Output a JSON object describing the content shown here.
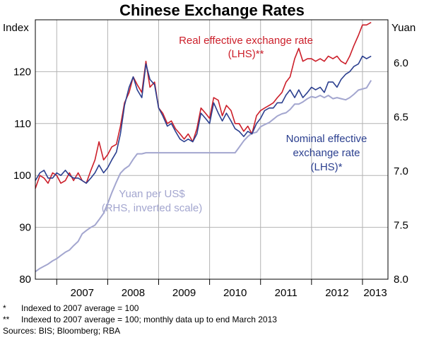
{
  "chart_data": {
    "type": "line",
    "title": "Chinese Exchange Rates",
    "left_axis": {
      "label": "Index",
      "range": [
        80,
        130
      ],
      "ticks": [
        "80",
        "90",
        "100",
        "110",
        "120"
      ]
    },
    "right_axis": {
      "label": "Yuan",
      "range": [
        8.0,
        5.6
      ],
      "inverted": true,
      "ticks": [
        "6.0",
        "6.5",
        "7.0",
        "7.5",
        "8.0"
      ]
    },
    "x_axis": {
      "range": [
        2006.58,
        2013.5
      ],
      "ticks": [
        "2007",
        "2008",
        "2009",
        "2010",
        "2011",
        "2012",
        "2013"
      ]
    },
    "grid": true,
    "series": [
      {
        "name": "Real effective exchange rate",
        "label_lines": [
          "Real effective exchange rate",
          "(LHS)**"
        ],
        "axis": "left",
        "color": "#cc1f2a",
        "x": [
          2006.58,
          2006.67,
          2006.75,
          2006.83,
          2006.92,
          2007.0,
          2007.08,
          2007.17,
          2007.25,
          2007.33,
          2007.42,
          2007.5,
          2007.58,
          2007.67,
          2007.75,
          2007.83,
          2007.92,
          2008.0,
          2008.08,
          2008.17,
          2008.25,
          2008.33,
          2008.42,
          2008.5,
          2008.58,
          2008.67,
          2008.75,
          2008.83,
          2008.92,
          2009.0,
          2009.08,
          2009.17,
          2009.25,
          2009.33,
          2009.42,
          2009.5,
          2009.58,
          2009.67,
          2009.75,
          2009.83,
          2009.92,
          2010.0,
          2010.08,
          2010.17,
          2010.25,
          2010.33,
          2010.42,
          2010.5,
          2010.58,
          2010.67,
          2010.75,
          2010.83,
          2010.92,
          2011.0,
          2011.08,
          2011.17,
          2011.25,
          2011.33,
          2011.42,
          2011.5,
          2011.58,
          2011.67,
          2011.75,
          2011.83,
          2011.92,
          2012.0,
          2012.08,
          2012.17,
          2012.25,
          2012.33,
          2012.42,
          2012.5,
          2012.58,
          2012.67,
          2012.75,
          2012.83,
          2012.92,
          2013.0,
          2013.08,
          2013.17
        ],
        "values": [
          97.5,
          100.0,
          99.5,
          98.5,
          100.5,
          100.0,
          98.5,
          99.0,
          100.5,
          99.0,
          100.5,
          99.0,
          98.5,
          101.0,
          103.0,
          106.5,
          103.0,
          104.0,
          105.5,
          106.0,
          109.5,
          114.0,
          116.0,
          119.0,
          117.5,
          116.0,
          122.0,
          117.0,
          118.0,
          113.0,
          112.0,
          110.0,
          110.5,
          109.0,
          108.0,
          107.0,
          108.0,
          106.5,
          109.0,
          113.0,
          112.0,
          111.0,
          115.0,
          114.5,
          111.5,
          113.5,
          112.5,
          110.0,
          110.0,
          108.5,
          109.5,
          108.0,
          111.5,
          112.5,
          113.0,
          113.5,
          114.0,
          115.0,
          116.0,
          118.0,
          119.0,
          122.5,
          124.5,
          122.0,
          122.5,
          122.5,
          122.0,
          122.5,
          122.0,
          123.0,
          122.5,
          123.0,
          122.0,
          121.5,
          123.0,
          125.0,
          127.0,
          129.0,
          129.0,
          129.5
        ]
      },
      {
        "name": "Nominal effective exchange rate",
        "label_lines": [
          "Nominal effective",
          "exchange rate",
          "(LHS)*"
        ],
        "axis": "left",
        "color": "#2b3f8f",
        "x": [
          2006.58,
          2006.67,
          2006.75,
          2006.83,
          2006.92,
          2007.0,
          2007.08,
          2007.17,
          2007.25,
          2007.33,
          2007.42,
          2007.5,
          2007.58,
          2007.67,
          2007.75,
          2007.83,
          2007.92,
          2008.0,
          2008.08,
          2008.17,
          2008.25,
          2008.33,
          2008.42,
          2008.5,
          2008.58,
          2008.67,
          2008.75,
          2008.83,
          2008.92,
          2009.0,
          2009.08,
          2009.17,
          2009.25,
          2009.33,
          2009.42,
          2009.5,
          2009.58,
          2009.67,
          2009.75,
          2009.83,
          2009.92,
          2010.0,
          2010.08,
          2010.17,
          2010.25,
          2010.33,
          2010.42,
          2010.5,
          2010.58,
          2010.67,
          2010.75,
          2010.83,
          2010.92,
          2011.0,
          2011.08,
          2011.17,
          2011.25,
          2011.33,
          2011.42,
          2011.5,
          2011.58,
          2011.67,
          2011.75,
          2011.83,
          2011.92,
          2012.0,
          2012.08,
          2012.17,
          2012.25,
          2012.33,
          2012.42,
          2012.5,
          2012.58,
          2012.67,
          2012.75,
          2012.83,
          2012.92,
          2013.0,
          2013.08,
          2013.17
        ],
        "values": [
          99.0,
          100.5,
          101.0,
          99.5,
          99.5,
          100.5,
          100.0,
          101.0,
          100.0,
          99.5,
          99.5,
          99.0,
          98.5,
          99.5,
          100.5,
          102.0,
          100.5,
          101.5,
          103.0,
          104.5,
          108.0,
          113.5,
          117.0,
          119.0,
          116.5,
          115.0,
          121.5,
          118.5,
          117.5,
          113.0,
          111.5,
          109.5,
          110.0,
          108.5,
          107.0,
          106.5,
          107.0,
          106.5,
          108.0,
          112.0,
          111.0,
          110.0,
          114.0,
          112.0,
          110.5,
          112.0,
          110.5,
          109.0,
          108.5,
          107.5,
          108.5,
          108.0,
          110.0,
          111.0,
          112.5,
          113.0,
          113.0,
          114.0,
          114.0,
          115.5,
          116.5,
          115.0,
          116.5,
          115.0,
          116.0,
          117.0,
          116.5,
          117.0,
          116.0,
          118.0,
          118.0,
          117.0,
          118.5,
          119.5,
          120.0,
          121.0,
          121.5,
          123.0,
          122.5,
          123.0
        ]
      },
      {
        "name": "Yuan per US$",
        "label_lines": [
          "Yuan per US$",
          "(RHS, inverted scale)"
        ],
        "axis": "right",
        "color": "#a3a6cf",
        "x": [
          2006.58,
          2006.67,
          2006.75,
          2006.83,
          2006.92,
          2007.0,
          2007.08,
          2007.17,
          2007.25,
          2007.33,
          2007.42,
          2007.5,
          2007.58,
          2007.67,
          2007.75,
          2007.83,
          2007.92,
          2008.0,
          2008.08,
          2008.17,
          2008.25,
          2008.33,
          2008.42,
          2008.5,
          2008.58,
          2008.67,
          2008.75,
          2008.83,
          2008.92,
          2009.0,
          2009.5,
          2010.0,
          2010.5,
          2010.58,
          2010.67,
          2010.75,
          2010.83,
          2010.92,
          2011.0,
          2011.08,
          2011.17,
          2011.25,
          2011.33,
          2011.42,
          2011.5,
          2011.58,
          2011.67,
          2011.75,
          2011.83,
          2011.92,
          2012.0,
          2012.08,
          2012.17,
          2012.25,
          2012.33,
          2012.42,
          2012.5,
          2012.58,
          2012.67,
          2012.75,
          2012.83,
          2012.92,
          2013.0,
          2013.08,
          2013.17
        ],
        "values": [
          7.93,
          7.9,
          7.88,
          7.86,
          7.83,
          7.81,
          7.78,
          7.75,
          7.73,
          7.69,
          7.65,
          7.58,
          7.55,
          7.52,
          7.5,
          7.45,
          7.39,
          7.3,
          7.2,
          7.1,
          7.02,
          6.98,
          6.95,
          6.89,
          6.84,
          6.84,
          6.83,
          6.83,
          6.83,
          6.83,
          6.83,
          6.83,
          6.83,
          6.78,
          6.72,
          6.68,
          6.65,
          6.64,
          6.59,
          6.57,
          6.55,
          6.52,
          6.49,
          6.47,
          6.46,
          6.43,
          6.38,
          6.38,
          6.36,
          6.33,
          6.31,
          6.32,
          6.3,
          6.32,
          6.3,
          6.33,
          6.32,
          6.33,
          6.34,
          6.32,
          6.29,
          6.25,
          6.24,
          6.23,
          6.16
        ]
      }
    ]
  },
  "footnotes": [
    {
      "mark": "*",
      "text": "Indexed to 2007 average = 100"
    },
    {
      "mark": "**",
      "text": "Indexed to 2007 average = 100; monthly data up to end March 2013"
    }
  ],
  "sources": "Sources: BIS; Bloomberg; RBA"
}
